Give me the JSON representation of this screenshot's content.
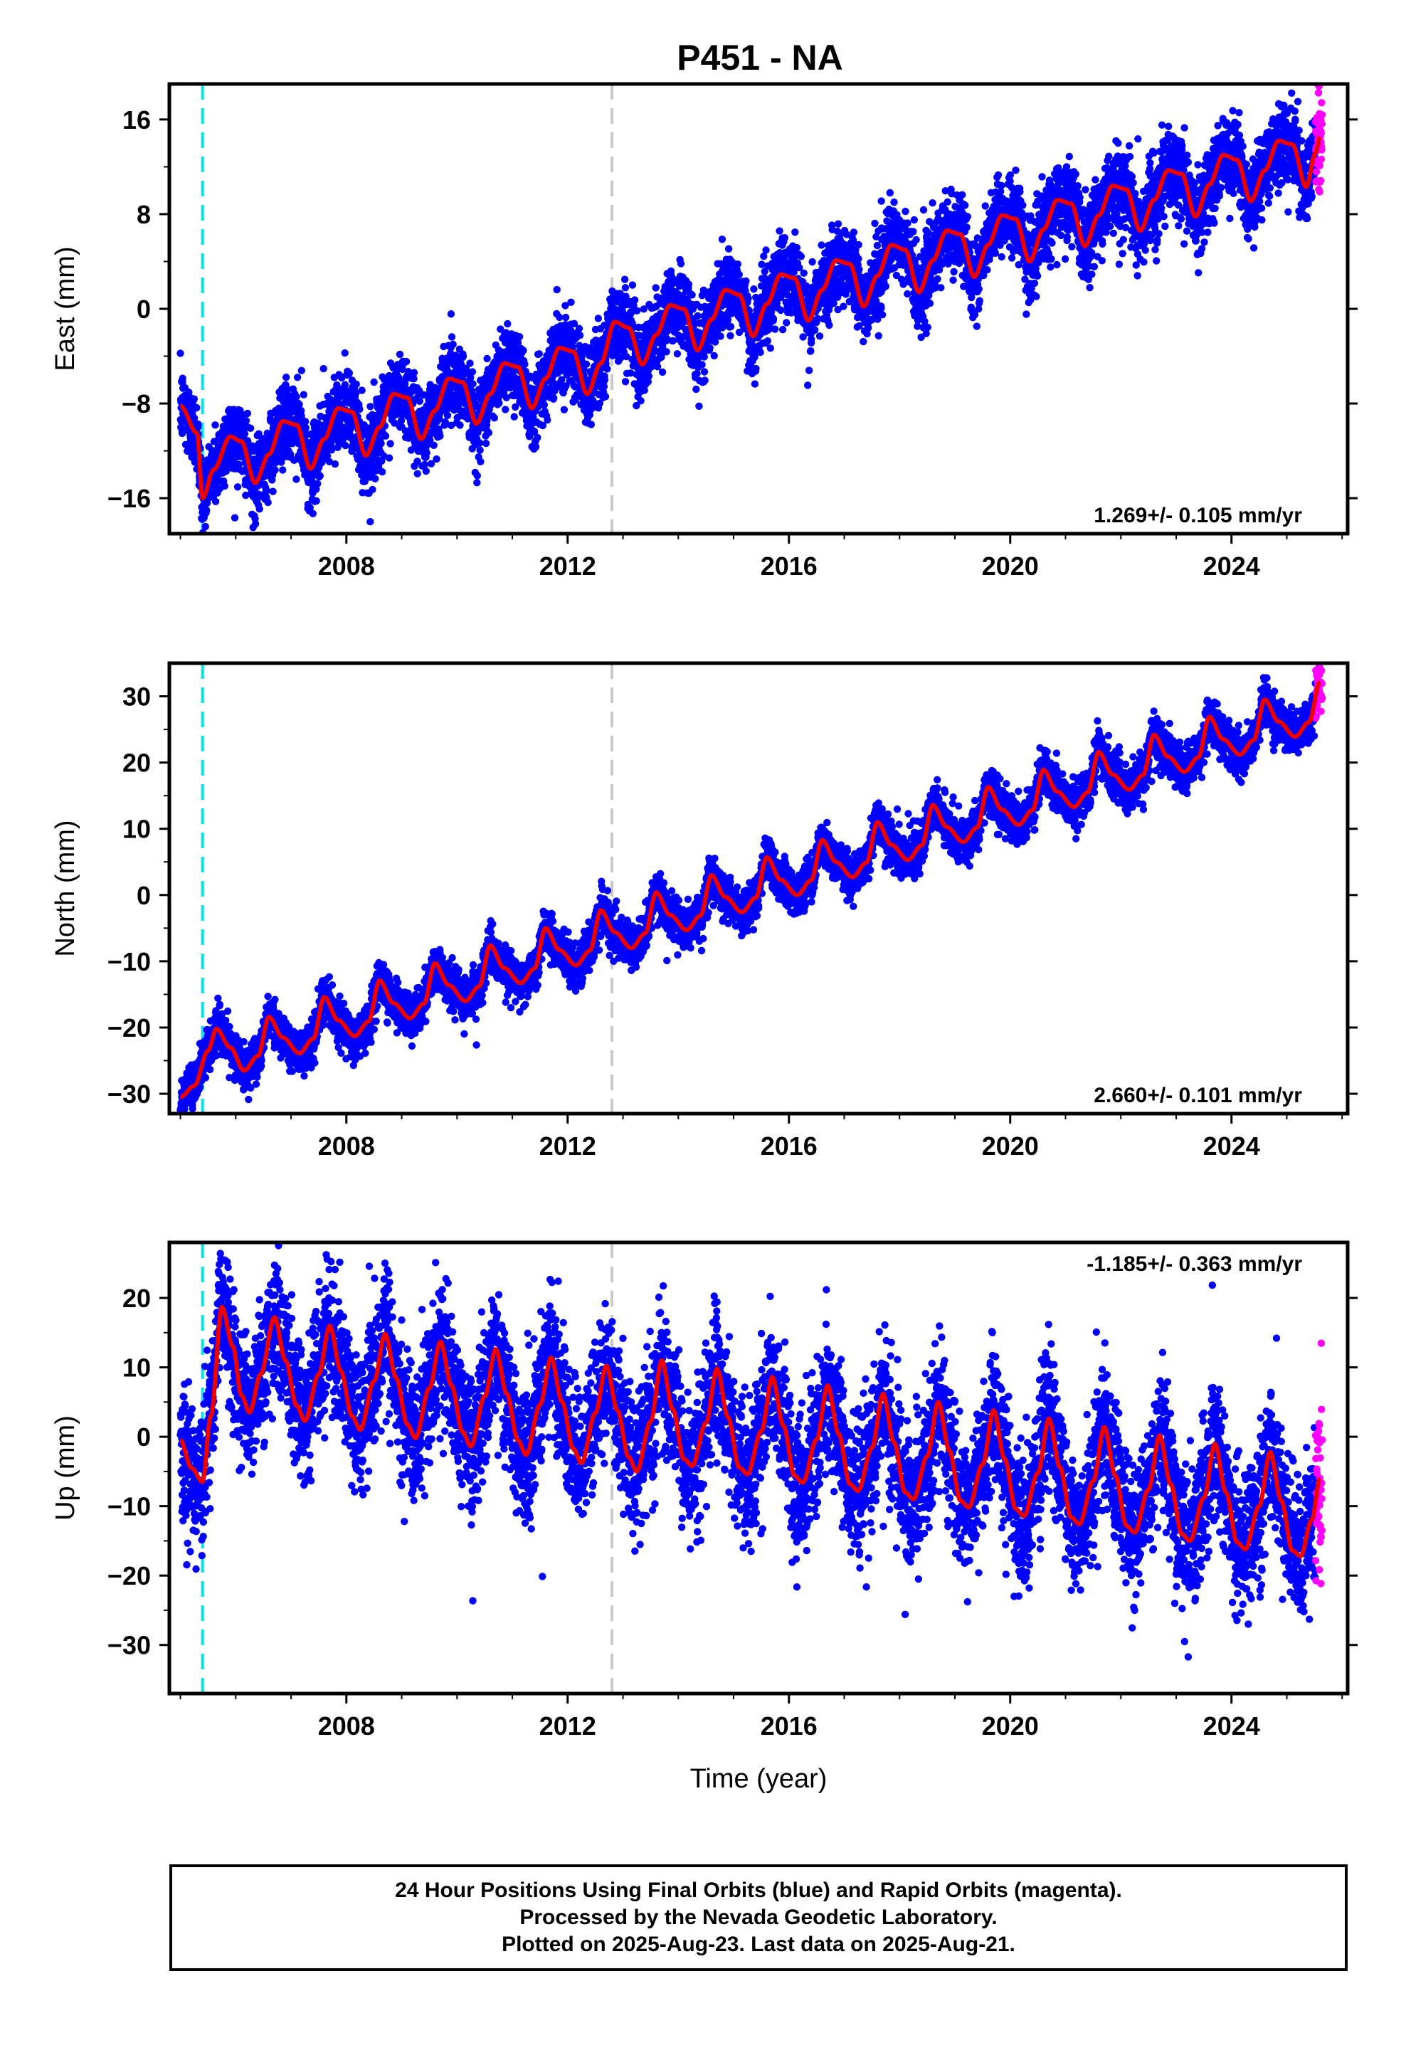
{
  "title": "P451 - NA",
  "xlabel": "Time (year)",
  "footer": {
    "line1": "24 Hour Positions Using Final Orbits (blue) and Rapid Orbits (magenta).",
    "line2": "Processed by the Nevada Geodetic Laboratory.",
    "line3": "Plotted on 2025-Aug-23. Last data on 2025-Aug-21."
  },
  "colors": {
    "final": "#0000ff",
    "rapid": "#ff00ff",
    "model": "#ee0000",
    "equipment_change": "#00e5ee",
    "other_event": "#c8c8c8"
  },
  "chart_data": [
    {
      "type": "scatter",
      "component": "east",
      "ylabel": "East (mm)",
      "xlim": [
        2004.8,
        2026.1
      ],
      "ylim": [
        -19,
        19
      ],
      "xticks": [
        2008,
        2012,
        2016,
        2020,
        2024
      ],
      "yticks": [
        -16,
        -8,
        0,
        8,
        16
      ],
      "xtick_labels": [
        "2008",
        "2012",
        "2016",
        "2020",
        "2024"
      ],
      "ytick_labels": [
        "−16",
        "−8",
        "0",
        "8",
        "16"
      ],
      "rate_label": "1.269+/- 0.105 mm/yr",
      "rate_position": "bottom-right",
      "events": [
        {
          "x": 2005.4,
          "color": "cyan"
        },
        {
          "x": 2012.8,
          "color": "gray"
        }
      ],
      "data_start": 2005.0,
      "data_end": 2025.64,
      "rapid_start": 2025.52,
      "model_points": [
        [
          2005.0,
          -8.2
        ],
        [
          2005.3,
          -10.5
        ],
        [
          2005.4,
          -16.0
        ],
        [
          2005.6,
          -13.6
        ],
        [
          2005.9,
          -10.8
        ],
        [
          2006.1,
          -11.2
        ],
        [
          2006.35,
          -14.7
        ],
        [
          2006.6,
          -12.3
        ],
        [
          2006.85,
          -9.5
        ],
        [
          2007.1,
          -9.8
        ],
        [
          2007.35,
          -13.5
        ],
        [
          2007.6,
          -11.0
        ],
        [
          2007.85,
          -8.4
        ],
        [
          2008.1,
          -8.7
        ],
        [
          2008.35,
          -12.4
        ],
        [
          2008.6,
          -10.0
        ],
        [
          2008.85,
          -7.2
        ],
        [
          2009.1,
          -7.5
        ],
        [
          2009.35,
          -11.0
        ],
        [
          2009.6,
          -8.6
        ],
        [
          2009.85,
          -5.9
        ],
        [
          2010.1,
          -6.2
        ],
        [
          2010.35,
          -9.7
        ],
        [
          2010.6,
          -7.2
        ],
        [
          2010.85,
          -4.6
        ],
        [
          2011.1,
          -4.9
        ],
        [
          2011.35,
          -8.4
        ],
        [
          2011.6,
          -5.9
        ],
        [
          2011.85,
          -3.3
        ],
        [
          2012.1,
          -3.6
        ],
        [
          2012.35,
          -7.2
        ],
        [
          2012.6,
          -4.6
        ],
        [
          2012.85,
          -1.1
        ],
        [
          2013.1,
          -1.6
        ],
        [
          2013.35,
          -4.7
        ],
        [
          2013.6,
          -2.2
        ],
        [
          2013.85,
          0.3
        ],
        [
          2014.1,
          0.0
        ],
        [
          2014.35,
          -3.5
        ],
        [
          2014.6,
          -0.9
        ],
        [
          2014.85,
          1.6
        ],
        [
          2015.1,
          1.2
        ],
        [
          2015.35,
          -2.3
        ],
        [
          2015.6,
          0.4
        ],
        [
          2015.85,
          2.9
        ],
        [
          2016.1,
          2.6
        ],
        [
          2016.35,
          -1.0
        ],
        [
          2016.6,
          1.6
        ],
        [
          2016.85,
          4.1
        ],
        [
          2017.1,
          3.8
        ],
        [
          2017.35,
          0.2
        ],
        [
          2017.6,
          2.8
        ],
        [
          2017.85,
          5.4
        ],
        [
          2018.1,
          5.0
        ],
        [
          2018.35,
          1.4
        ],
        [
          2018.6,
          4.1
        ],
        [
          2018.85,
          6.6
        ],
        [
          2019.1,
          6.3
        ],
        [
          2019.35,
          2.7
        ],
        [
          2019.6,
          5.4
        ],
        [
          2019.85,
          7.9
        ],
        [
          2020.1,
          7.6
        ],
        [
          2020.35,
          4.0
        ],
        [
          2020.6,
          6.7
        ],
        [
          2020.85,
          9.2
        ],
        [
          2021.1,
          8.9
        ],
        [
          2021.35,
          5.3
        ],
        [
          2021.6,
          7.9
        ],
        [
          2021.85,
          10.4
        ],
        [
          2022.1,
          10.1
        ],
        [
          2022.35,
          6.6
        ],
        [
          2022.6,
          9.2
        ],
        [
          2022.85,
          11.7
        ],
        [
          2023.1,
          11.4
        ],
        [
          2023.35,
          7.8
        ],
        [
          2023.6,
          10.5
        ],
        [
          2023.85,
          13.0
        ],
        [
          2024.1,
          12.6
        ],
        [
          2024.35,
          9.1
        ],
        [
          2024.6,
          11.7
        ],
        [
          2024.85,
          14.2
        ],
        [
          2025.1,
          13.9
        ],
        [
          2025.35,
          10.3
        ],
        [
          2025.52,
          13.2
        ],
        [
          2025.6,
          14.5
        ]
      ]
    },
    {
      "type": "scatter",
      "component": "north",
      "ylabel": "North (mm)",
      "xlim": [
        2004.8,
        2026.1
      ],
      "ylim": [
        -33,
        35
      ],
      "xticks": [
        2008,
        2012,
        2016,
        2020,
        2024
      ],
      "yticks": [
        -30,
        -20,
        -10,
        0,
        10,
        20,
        30
      ],
      "xtick_labels": [
        "2008",
        "2012",
        "2016",
        "2020",
        "2024"
      ],
      "ytick_labels": [
        "−30",
        "−20",
        "−10",
        "0",
        "10",
        "20",
        "30"
      ],
      "rate_label": "2.660+/- 0.101 mm/yr",
      "rate_position": "bottom-right",
      "events": [
        {
          "x": 2005.4,
          "color": "cyan"
        },
        {
          "x": 2012.8,
          "color": "gray"
        }
      ],
      "data_start": 2005.0,
      "data_end": 2025.64,
      "rapid_start": 2025.52,
      "model_points": [
        [
          2005.0,
          -30.5
        ],
        [
          2005.25,
          -28.8
        ],
        [
          2005.5,
          -23.5
        ],
        [
          2005.65,
          -20.2
        ],
        [
          2005.9,
          -23.0
        ],
        [
          2006.15,
          -26.5
        ],
        [
          2006.4,
          -24.3
        ],
        [
          2006.6,
          -18.4
        ],
        [
          2006.85,
          -21.5
        ],
        [
          2007.15,
          -23.9
        ],
        [
          2007.4,
          -21.7
        ],
        [
          2007.6,
          -15.4
        ],
        [
          2007.85,
          -18.9
        ],
        [
          2008.15,
          -21.3
        ],
        [
          2008.4,
          -19.1
        ],
        [
          2008.6,
          -12.9
        ],
        [
          2008.85,
          -16.3
        ],
        [
          2009.15,
          -18.6
        ],
        [
          2009.4,
          -16.4
        ],
        [
          2009.6,
          -10.3
        ],
        [
          2009.85,
          -13.6
        ],
        [
          2010.15,
          -16.0
        ],
        [
          2010.4,
          -13.8
        ],
        [
          2010.6,
          -7.6
        ],
        [
          2010.85,
          -11.0
        ],
        [
          2011.15,
          -13.3
        ],
        [
          2011.4,
          -11.1
        ],
        [
          2011.6,
          -5.0
        ],
        [
          2011.85,
          -8.3
        ],
        [
          2012.15,
          -10.6
        ],
        [
          2012.4,
          -8.4
        ],
        [
          2012.6,
          -2.3
        ],
        [
          2012.85,
          -5.6
        ],
        [
          2013.15,
          -8.0
        ],
        [
          2013.4,
          -5.8
        ],
        [
          2013.6,
          0.4
        ],
        [
          2013.85,
          -3.0
        ],
        [
          2014.15,
          -5.3
        ],
        [
          2014.4,
          -3.1
        ],
        [
          2014.6,
          3.0
        ],
        [
          2014.85,
          -0.3
        ],
        [
          2015.15,
          -2.6
        ],
        [
          2015.4,
          -0.4
        ],
        [
          2015.6,
          5.7
        ],
        [
          2015.85,
          2.3
        ],
        [
          2016.15,
          0.0
        ],
        [
          2016.4,
          2.2
        ],
        [
          2016.6,
          8.3
        ],
        [
          2016.85,
          5.0
        ],
        [
          2017.15,
          2.7
        ],
        [
          2017.4,
          4.9
        ],
        [
          2017.6,
          11.0
        ],
        [
          2017.85,
          7.6
        ],
        [
          2018.15,
          5.3
        ],
        [
          2018.4,
          7.5
        ],
        [
          2018.6,
          13.6
        ],
        [
          2018.85,
          10.3
        ],
        [
          2019.15,
          8.0
        ],
        [
          2019.4,
          10.2
        ],
        [
          2019.6,
          16.3
        ],
        [
          2019.85,
          12.9
        ],
        [
          2020.15,
          10.6
        ],
        [
          2020.4,
          12.8
        ],
        [
          2020.6,
          18.9
        ],
        [
          2020.85,
          15.6
        ],
        [
          2021.15,
          13.3
        ],
        [
          2021.4,
          15.5
        ],
        [
          2021.6,
          21.6
        ],
        [
          2021.85,
          18.2
        ],
        [
          2022.15,
          15.9
        ],
        [
          2022.4,
          18.1
        ],
        [
          2022.6,
          24.2
        ],
        [
          2022.85,
          20.9
        ],
        [
          2023.15,
          18.6
        ],
        [
          2023.4,
          20.8
        ],
        [
          2023.6,
          26.9
        ],
        [
          2023.85,
          23.5
        ],
        [
          2024.15,
          21.2
        ],
        [
          2024.4,
          23.4
        ],
        [
          2024.6,
          29.5
        ],
        [
          2024.85,
          26.2
        ],
        [
          2025.15,
          23.9
        ],
        [
          2025.4,
          26.1
        ],
        [
          2025.6,
          32.2
        ]
      ]
    },
    {
      "type": "scatter",
      "component": "up",
      "ylabel": "Up (mm)",
      "xlim": [
        2004.8,
        2026.1
      ],
      "ylim": [
        -37,
        28
      ],
      "xticks": [
        2008,
        2012,
        2016,
        2020,
        2024
      ],
      "yticks": [
        -30,
        -20,
        -10,
        0,
        10,
        20
      ],
      "xtick_labels": [
        "2008",
        "2012",
        "2016",
        "2020",
        "2024"
      ],
      "ytick_labels": [
        "−30",
        "−20",
        "−10",
        "0",
        "10",
        "20"
      ],
      "rate_label": "-1.185+/- 0.363 mm/yr",
      "rate_position": "top-right",
      "events": [
        {
          "x": 2005.4,
          "color": "cyan"
        },
        {
          "x": 2012.8,
          "color": "gray"
        }
      ],
      "data_start": 2005.0,
      "data_end": 2025.64,
      "rapid_start": 2025.52,
      "model_points": [
        [
          2005.0,
          -0.5
        ],
        [
          2005.2,
          -4.5
        ],
        [
          2005.4,
          -6.5
        ],
        [
          2005.55,
          3.0
        ],
        [
          2005.75,
          18.7
        ],
        [
          2005.95,
          13.0
        ],
        [
          2006.1,
          6.0
        ],
        [
          2006.25,
          3.5
        ],
        [
          2006.45,
          9.0
        ],
        [
          2006.7,
          17.2
        ],
        [
          2006.9,
          11.0
        ],
        [
          2007.1,
          4.5
        ],
        [
          2007.25,
          2.3
        ],
        [
          2007.5,
          9.0
        ],
        [
          2007.7,
          16.0
        ],
        [
          2007.9,
          9.5
        ],
        [
          2008.1,
          3.0
        ],
        [
          2008.25,
          1.0
        ],
        [
          2008.5,
          8.0
        ],
        [
          2008.7,
          14.8
        ],
        [
          2008.9,
          8.5
        ],
        [
          2009.1,
          1.8
        ],
        [
          2009.25,
          -0.2
        ],
        [
          2009.5,
          7.0
        ],
        [
          2009.7,
          13.7
        ],
        [
          2009.9,
          7.4
        ],
        [
          2010.1,
          0.7
        ],
        [
          2010.25,
          -1.4
        ],
        [
          2010.5,
          5.8
        ],
        [
          2010.7,
          12.6
        ],
        [
          2010.9,
          6.2
        ],
        [
          2011.1,
          -0.5
        ],
        [
          2011.25,
          -2.6
        ],
        [
          2011.5,
          4.6
        ],
        [
          2011.7,
          11.4
        ],
        [
          2011.9,
          5.0
        ],
        [
          2012.1,
          -1.7
        ],
        [
          2012.25,
          -3.8
        ],
        [
          2012.5,
          3.4
        ],
        [
          2012.7,
          10.2
        ],
        [
          2012.9,
          3.8
        ],
        [
          2013.1,
          -2.9
        ],
        [
          2013.25,
          -5.0
        ],
        [
          2013.5,
          2.2
        ],
        [
          2013.7,
          11.0
        ],
        [
          2013.9,
          4.0
        ],
        [
          2014.1,
          -3.2
        ],
        [
          2014.25,
          -4.2
        ],
        [
          2014.5,
          2.0
        ],
        [
          2014.7,
          9.8
        ],
        [
          2014.9,
          2.8
        ],
        [
          2015.1,
          -4.4
        ],
        [
          2015.25,
          -5.4
        ],
        [
          2015.5,
          0.8
        ],
        [
          2015.7,
          8.6
        ],
        [
          2015.9,
          1.6
        ],
        [
          2016.1,
          -5.6
        ],
        [
          2016.25,
          -6.6
        ],
        [
          2016.5,
          -0.4
        ],
        [
          2016.7,
          7.4
        ],
        [
          2016.9,
          0.4
        ],
        [
          2017.1,
          -6.8
        ],
        [
          2017.25,
          -7.8
        ],
        [
          2017.5,
          -1.6
        ],
        [
          2017.7,
          6.2
        ],
        [
          2017.9,
          -0.8
        ],
        [
          2018.1,
          -8.0
        ],
        [
          2018.25,
          -9.0
        ],
        [
          2018.5,
          -2.8
        ],
        [
          2018.7,
          5.0
        ],
        [
          2018.9,
          -2.0
        ],
        [
          2019.1,
          -9.2
        ],
        [
          2019.25,
          -10.2
        ],
        [
          2019.5,
          -4.0
        ],
        [
          2019.7,
          3.8
        ],
        [
          2019.9,
          -3.2
        ],
        [
          2020.1,
          -10.4
        ],
        [
          2020.25,
          -11.4
        ],
        [
          2020.5,
          -5.2
        ],
        [
          2020.7,
          2.6
        ],
        [
          2020.9,
          -4.4
        ],
        [
          2021.1,
          -11.6
        ],
        [
          2021.25,
          -12.6
        ],
        [
          2021.5,
          -6.4
        ],
        [
          2021.7,
          1.4
        ],
        [
          2021.9,
          -5.6
        ],
        [
          2022.1,
          -12.8
        ],
        [
          2022.25,
          -13.8
        ],
        [
          2022.5,
          -7.6
        ],
        [
          2022.7,
          0.2
        ],
        [
          2022.9,
          -6.8
        ],
        [
          2023.1,
          -14.0
        ],
        [
          2023.25,
          -15.0
        ],
        [
          2023.5,
          -8.8
        ],
        [
          2023.7,
          -1.0
        ],
        [
          2023.9,
          -8.0
        ],
        [
          2024.1,
          -15.2
        ],
        [
          2024.25,
          -16.2
        ],
        [
          2024.5,
          -10.0
        ],
        [
          2024.7,
          -2.2
        ],
        [
          2024.9,
          -9.2
        ],
        [
          2025.1,
          -16.4
        ],
        [
          2025.25,
          -17.2
        ],
        [
          2025.45,
          -12.0
        ],
        [
          2025.6,
          -6.0
        ]
      ]
    }
  ]
}
